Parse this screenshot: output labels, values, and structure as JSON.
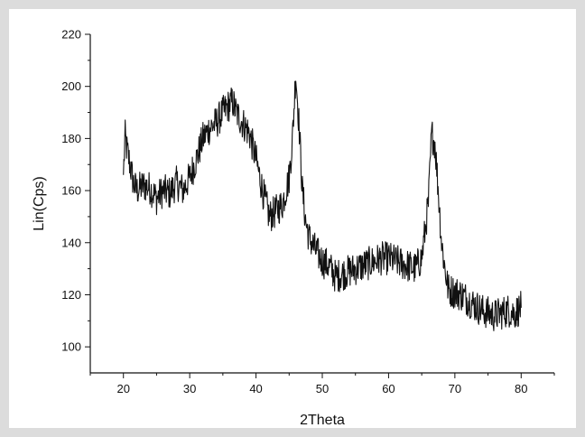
{
  "chart_data": {
    "type": "line",
    "xlabel": "2Theta",
    "ylabel": "Lin(Cps)",
    "xlim": [
      15,
      85
    ],
    "ylim": [
      90,
      220
    ],
    "x_ticks": [
      20,
      30,
      40,
      50,
      60,
      70,
      80
    ],
    "y_ticks": [
      100,
      120,
      140,
      160,
      180,
      200,
      220
    ],
    "grid": false,
    "line_color": "#111111",
    "series": [
      {
        "x": [
          20,
          20.25,
          20.5,
          21,
          21.5,
          22,
          23,
          24,
          25,
          26,
          27,
          28,
          29,
          30,
          31,
          32,
          33,
          34,
          35,
          36,
          36.5,
          37,
          38,
          39,
          40,
          41,
          41.5,
          42,
          43,
          44,
          45,
          45.5,
          46,
          46.5,
          47,
          47.5,
          48,
          49,
          50,
          51,
          52,
          53,
          54,
          55,
          56,
          57,
          58,
          59,
          60,
          61,
          62,
          63,
          64,
          65,
          66,
          66.5,
          67,
          67.5,
          68,
          68.5,
          69,
          70,
          71,
          72,
          73,
          74,
          75,
          76,
          77,
          78,
          79,
          80
        ],
        "y": [
          166,
          181,
          176,
          170,
          163,
          160,
          162,
          161,
          157,
          160,
          159,
          163,
          160,
          165,
          172,
          180,
          184,
          186,
          190,
          193,
          194,
          190,
          186,
          182,
          172,
          160,
          155,
          150,
          152,
          155,
          165,
          180,
          205,
          185,
          160,
          148,
          142,
          137,
          133,
          131,
          127,
          128,
          129,
          130,
          131,
          132,
          133,
          134,
          134,
          133,
          132,
          131,
          130,
          134,
          155,
          182,
          178,
          160,
          140,
          130,
          122,
          121,
          120,
          118,
          116,
          114,
          113,
          112,
          113,
          114,
          113,
          115
        ]
      }
    ]
  }
}
